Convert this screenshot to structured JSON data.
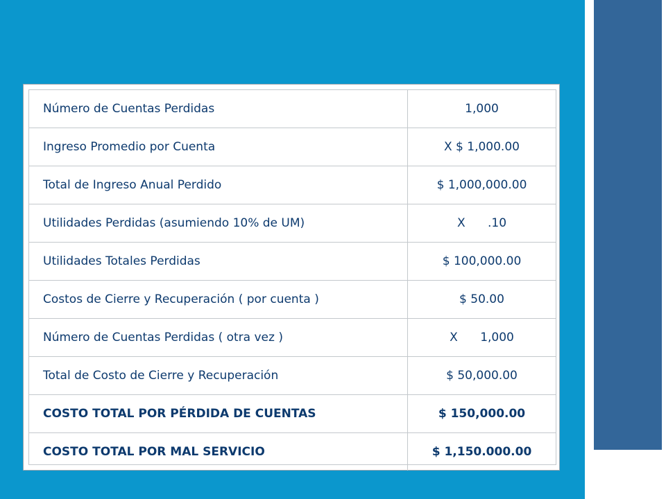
{
  "table": {
    "rows": [
      {
        "label": "Número de Cuentas Perdidas",
        "value": "1,000",
        "bold": false
      },
      {
        "label": "Ingreso Promedio por Cuenta",
        "value": "X $ 1,000.00",
        "bold": false
      },
      {
        "label": "Total de Ingreso Anual Perdido",
        "value": "$ 1,000,000.00",
        "bold": false
      },
      {
        "label": "Utilidades Perdidas (asumiendo 10% de UM)",
        "value": "X      .10",
        "bold": false
      },
      {
        "label": "Utilidades Totales Perdidas",
        "value": "$ 100,000.00",
        "bold": false
      },
      {
        "label": "Costos de Cierre y Recuperación ( por cuenta )",
        "value": "$ 50.00",
        "bold": false
      },
      {
        "label": "Número de Cuentas Perdidas ( otra vez )",
        "value": "X      1,000",
        "bold": false
      },
      {
        "label": "Total de Costo de Cierre y Recuperación",
        "value": "$ 50,000.00",
        "bold": false
      },
      {
        "label": "COSTO TOTAL POR PÉRDIDA DE CUENTAS",
        "value": "$ 150,000.00",
        "bold": true
      },
      {
        "label": "COSTO TOTAL POR MAL SERVICIO",
        "value": "$ 1,150.000.00",
        "bold": true
      }
    ]
  },
  "colors": {
    "main_panel": "#0b97cd",
    "side_bar": "#336699",
    "table_text": "#0d3a6e"
  }
}
